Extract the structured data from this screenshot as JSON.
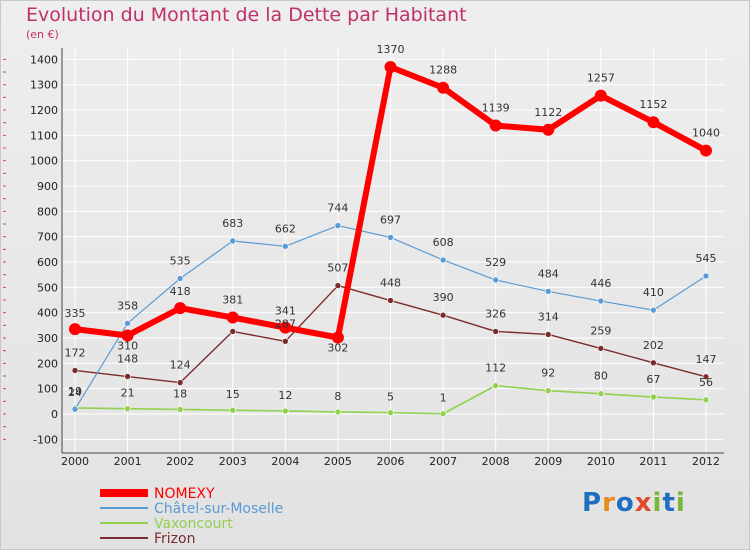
{
  "header": {
    "title": "Evolution du Montant de la Dette par Habitant",
    "subtitle": "(en €)"
  },
  "logo_text": "Proxiti",
  "chart_data": {
    "type": "line",
    "title": "Evolution du Montant de la Dette par Habitant",
    "subtitle": "(en €)",
    "xlabel": "",
    "ylabel": "",
    "x": [
      2000,
      2001,
      2002,
      2003,
      2004,
      2005,
      2006,
      2007,
      2008,
      2009,
      2010,
      2011,
      2012
    ],
    "x_tick_labels": [
      "2000",
      "2001",
      "2002",
      "2003",
      "2004",
      "2005",
      "2006",
      "2007",
      "2008",
      "2009",
      "2010",
      "2011",
      "2012"
    ],
    "ylim": [
      -100,
      1400
    ],
    "y_ticks": [
      -100,
      0,
      100,
      200,
      300,
      400,
      500,
      600,
      700,
      800,
      900,
      1000,
      1100,
      1200,
      1300,
      1400
    ],
    "y_tick_labels": [
      "-100",
      "0",
      "100",
      "200",
      "300",
      "400",
      "500",
      "600",
      "700",
      "800",
      "900",
      "1000",
      "1100",
      "1200",
      "1300",
      "1400"
    ],
    "grid": true,
    "legend_position": "bottom-left",
    "series": [
      {
        "name": "NOMEXY",
        "color": "#ff0000",
        "values": [
          335,
          310,
          418,
          381,
          341,
          302,
          1370,
          1288,
          1139,
          1122,
          1257,
          1152,
          1040
        ],
        "labels": [
          "335",
          "310",
          "418",
          "381",
          "341",
          "302",
          "1370",
          "1288",
          "1139",
          "1122",
          "1257",
          "1152",
          "1040"
        ]
      },
      {
        "name": "Châtel-sur-Moselle",
        "color": "#5b9bd5",
        "values": [
          19,
          358,
          535,
          683,
          662,
          744,
          697,
          608,
          529,
          484,
          446,
          410,
          545
        ],
        "labels": [
          "19",
          "358",
          "535",
          "683",
          "662",
          "744",
          "697",
          "608",
          "529",
          "484",
          "446",
          "410",
          "545"
        ]
      },
      {
        "name": "Vaxoncourt",
        "color": "#92d050",
        "values": [
          24,
          21,
          18,
          15,
          12,
          8,
          5,
          1,
          112,
          92,
          80,
          67,
          56
        ],
        "labels": [
          "24",
          "21",
          "18",
          "15",
          "12",
          "8",
          "5",
          "1",
          "112",
          "92",
          "80",
          "67",
          "56"
        ]
      },
      {
        "name": "Frizon",
        "color": "#7b2c2c",
        "values": [
          172,
          148,
          124,
          326,
          287,
          507,
          448,
          390,
          326,
          314,
          259,
          202,
          147
        ],
        "labels": [
          "172",
          "148",
          "124",
          "",
          "287",
          "507",
          "448",
          "390",
          "326",
          "314",
          "259",
          "202",
          "147"
        ]
      }
    ]
  }
}
